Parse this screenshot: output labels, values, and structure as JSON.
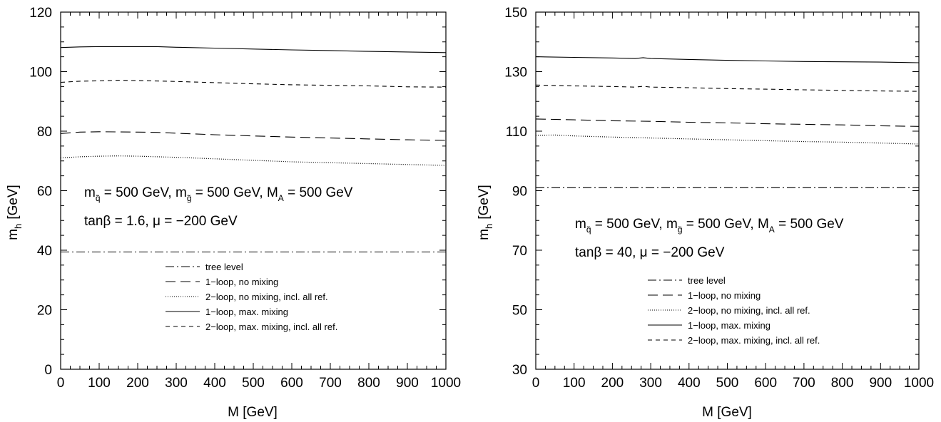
{
  "chart_data": [
    {
      "type": "line",
      "xlabel": "M [GeV]",
      "ylabel": "m",
      "ylabel_sub": "h",
      "ylabel_unit": "[GeV]",
      "xlim": [
        0,
        1000
      ],
      "ylim": [
        0,
        120
      ],
      "xticks": [
        0,
        100,
        200,
        300,
        400,
        500,
        600,
        700,
        800,
        900,
        1000
      ],
      "yticks": [
        0,
        20,
        40,
        60,
        80,
        100,
        120
      ],
      "grid": false,
      "legend_position": "bottom-center",
      "annotations": {
        "line1": {
          "mq": "m",
          "mq_sub": "q̃",
          "mq_val": " = 500 GeV, ",
          "mg": "m",
          "mg_sub": "g̃",
          "mg_val": " = 500 GeV, ",
          "ma": "M",
          "ma_sub": "A",
          "ma_val": " = 500 GeV"
        },
        "line2": "tanβ = 1.6, μ = −200 GeV"
      },
      "series": [
        {
          "name": "tree level",
          "style": "dashdot",
          "x": [
            0,
            1000
          ],
          "y": [
            39.4,
            39.4
          ]
        },
        {
          "name": "1−loop, no mixing",
          "style": "longdash",
          "x": [
            0,
            50,
            100,
            200,
            250,
            300,
            400,
            500,
            600,
            700,
            800,
            900,
            1000
          ],
          "y": [
            79.2,
            79.7,
            79.8,
            79.7,
            79.6,
            79.3,
            78.8,
            78.4,
            78.0,
            77.7,
            77.4,
            77.1,
            76.9
          ]
        },
        {
          "name": "2−loop, no mixing, incl. all ref.",
          "style": "dotted",
          "x": [
            0,
            50,
            100,
            150,
            200,
            250,
            300,
            400,
            500,
            600,
            700,
            800,
            900,
            1000
          ],
          "y": [
            71.0,
            71.4,
            71.6,
            71.7,
            71.6,
            71.4,
            71.2,
            70.7,
            70.2,
            69.7,
            69.4,
            69.1,
            68.8,
            68.5
          ]
        },
        {
          "name": "1−loop, max. mixing",
          "style": "solid",
          "x": [
            0,
            50,
            100,
            150,
            200,
            250,
            300,
            400,
            500,
            600,
            700,
            800,
            900,
            1000
          ],
          "y": [
            108.1,
            108.3,
            108.4,
            108.4,
            108.4,
            108.4,
            108.2,
            107.9,
            107.6,
            107.3,
            107.1,
            106.8,
            106.6,
            106.4
          ]
        },
        {
          "name": "2−loop, max. mixing, incl. all ref.",
          "style": "dashed",
          "x": [
            0,
            50,
            100,
            150,
            200,
            300,
            400,
            500,
            600,
            700,
            800,
            900,
            1000
          ],
          "y": [
            96.4,
            96.8,
            96.9,
            97.1,
            97.0,
            96.7,
            96.3,
            95.9,
            95.6,
            95.4,
            95.2,
            94.9,
            94.8
          ]
        }
      ]
    },
    {
      "type": "line",
      "xlabel": "M [GeV]",
      "ylabel": "m",
      "ylabel_sub": "h",
      "ylabel_unit": "[GeV]",
      "xlim": [
        0,
        1000
      ],
      "ylim": [
        30,
        150
      ],
      "xticks": [
        0,
        100,
        200,
        300,
        400,
        500,
        600,
        700,
        800,
        900,
        1000
      ],
      "yticks": [
        30,
        50,
        70,
        90,
        110,
        130,
        150
      ],
      "grid": false,
      "legend_position": "bottom-center",
      "annotations": {
        "line1": {
          "mq": "m",
          "mq_sub": "q̃",
          "mq_val": " = 500 GeV, ",
          "mg": "m",
          "mg_sub": "g̃",
          "mg_val": " = 500 GeV, ",
          "ma": "M",
          "ma_sub": "A",
          "ma_val": " = 500 GeV"
        },
        "line2": "tanβ = 40, μ = −200 GeV"
      },
      "series": [
        {
          "name": "tree level",
          "style": "dashdot",
          "x": [
            0,
            1000
          ],
          "y": [
            91.0,
            91.0
          ]
        },
        {
          "name": "1−loop, no mixing",
          "style": "longdash",
          "x": [
            0,
            100,
            200,
            300,
            400,
            500,
            600,
            700,
            800,
            900,
            1000
          ],
          "y": [
            114.1,
            113.8,
            113.5,
            113.3,
            113.0,
            112.8,
            112.5,
            112.3,
            112.1,
            111.8,
            111.6
          ]
        },
        {
          "name": "2−loop, no mixing, incl. all ref.",
          "style": "dotted",
          "x": [
            0,
            50,
            100,
            200,
            300,
            400,
            500,
            600,
            700,
            800,
            900,
            1000
          ],
          "y": [
            108.6,
            108.7,
            108.4,
            108.0,
            107.7,
            107.4,
            107.1,
            106.8,
            106.5,
            106.3,
            106.0,
            105.7
          ]
        },
        {
          "name": "1−loop, max. mixing",
          "style": "solid",
          "x": [
            0,
            100,
            200,
            260,
            280,
            300,
            400,
            500,
            600,
            700,
            800,
            900,
            1000
          ],
          "y": [
            135.0,
            134.8,
            134.6,
            134.4,
            134.7,
            134.4,
            134.1,
            133.8,
            133.6,
            133.4,
            133.3,
            133.2,
            133.0
          ]
        },
        {
          "name": "2−loop, max. mixing, incl. all ref.",
          "style": "dashed",
          "x": [
            0,
            100,
            200,
            260,
            280,
            300,
            400,
            500,
            600,
            700,
            800,
            900,
            1000
          ],
          "y": [
            125.5,
            125.2,
            125.0,
            124.8,
            125.1,
            124.8,
            124.6,
            124.3,
            124.1,
            123.9,
            123.7,
            123.5,
            123.4
          ]
        }
      ]
    }
  ]
}
